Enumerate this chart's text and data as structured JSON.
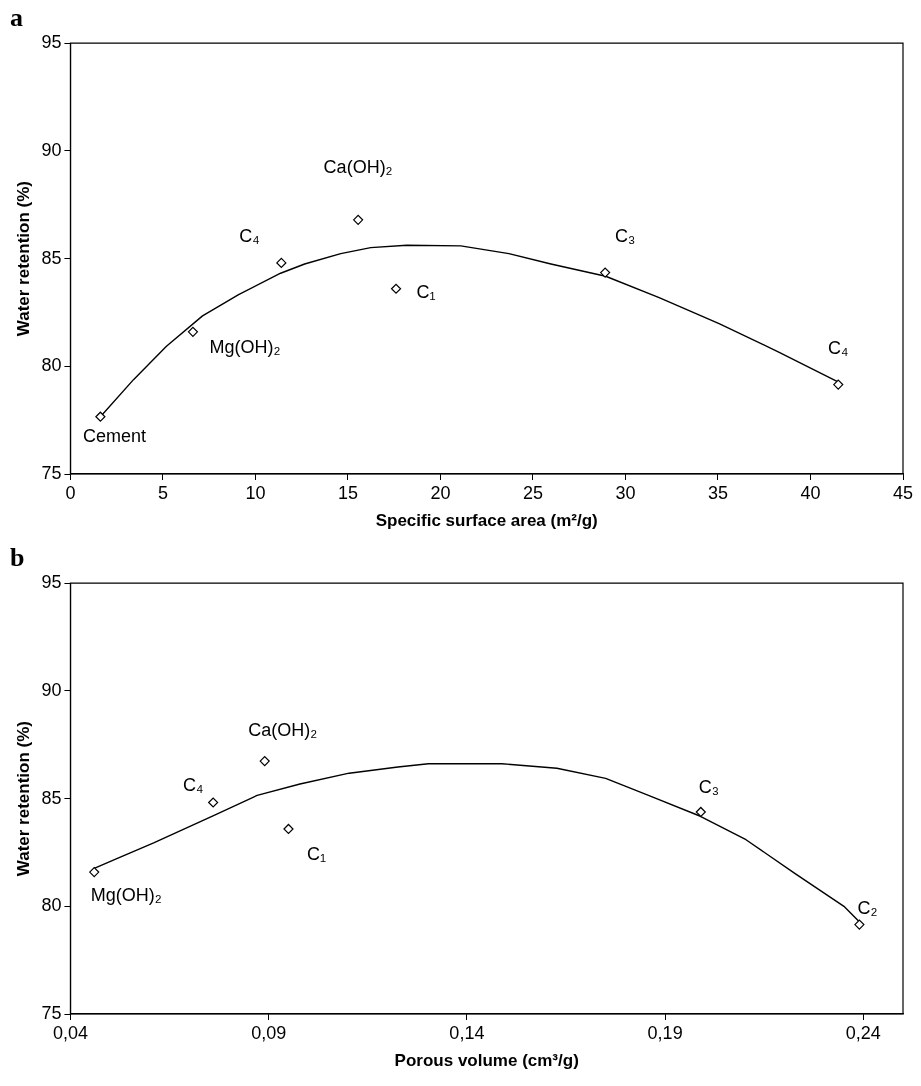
{
  "chart_data": [
    {
      "type": "scatter",
      "title": "a",
      "xlabel": "Specific surface area (m²/g)",
      "ylabel": "Water retention (%)",
      "xlim": [
        0,
        45
      ],
      "xticks": [
        0,
        5,
        10,
        15,
        20,
        25,
        30,
        35,
        40,
        45
      ],
      "ylim": [
        75,
        95
      ],
      "yticks": [
        75,
        80,
        85,
        90,
        95
      ],
      "grid": false,
      "legend": false,
      "marker": "diamond",
      "series": [
        {
          "color": "#000000",
          "x": [
            1.62,
            6.62,
            11.4,
            15.55,
            17.6,
            28.9,
            41.5
          ],
          "values": [
            77.66,
            81.6,
            84.8,
            86.8,
            83.6,
            84.35,
            79.15
          ]
        },
        {
          "type": "line",
          "marker": "none",
          "color": "#000000",
          "x": [
            1.62,
            3.41,
            5.19,
            7.14,
            9.09,
            11.36,
            12.66,
            14.61,
            16.23,
            18.18,
            21.1,
            23.7,
            25.97,
            28.93,
            31.82,
            35.06,
            38.31,
            41.46
          ],
          "values": [
            77.66,
            79.38,
            80.93,
            82.34,
            83.33,
            84.32,
            84.75,
            85.23,
            85.51,
            85.62,
            85.59,
            85.23,
            84.75,
            84.18,
            83.19,
            81.98,
            80.65,
            79.29
          ]
        }
      ],
      "annotations": [
        {
          "text": "Cement",
          "x": 1.62,
          "y": 77.66
        },
        {
          "text": "Mg(OH)₂",
          "x": 6.62,
          "y": 81.6
        },
        {
          "text": "C₄",
          "x": 11.4,
          "y": 84.8
        },
        {
          "text": "Ca(OH)₂",
          "x": 15.55,
          "y": 86.8
        },
        {
          "text": "C₁",
          "x": 17.6,
          "y": 83.6
        },
        {
          "text": "C₃",
          "x": 28.9,
          "y": 84.35
        },
        {
          "text": "C₄",
          "x": 41.5,
          "y": 79.15
        }
      ]
    },
    {
      "type": "scatter",
      "title": "b",
      "xlabel": "Porous volume (cm³/g)",
      "ylabel": "Water retention (%)",
      "xlim": [
        0.04,
        0.25
      ],
      "xticks": [
        {
          "value": 0.04,
          "label": "0,04"
        },
        {
          "value": 0.09,
          "label": "0,09"
        },
        {
          "value": 0.14,
          "label": "0,14"
        },
        {
          "value": 0.19,
          "label": "0,19"
        },
        {
          "value": 0.24,
          "label": "0,24"
        }
      ],
      "ylim": [
        75,
        95
      ],
      "yticks": [
        75,
        80,
        85,
        90,
        95
      ],
      "grid": false,
      "legend": false,
      "marker": "diamond",
      "series": [
        {
          "color": "#000000",
          "x": [
            0.046,
            0.076,
            0.089,
            0.095,
            0.199,
            0.239
          ],
          "values": [
            81.59,
            84.82,
            86.74,
            83.59,
            84.38,
            79.15
          ]
        },
        {
          "type": "line",
          "marker": "none",
          "color": "#000000",
          "x": [
            0.046,
            0.0517,
            0.061,
            0.0761,
            0.0871,
            0.0979,
            0.1103,
            0.1226,
            0.1303,
            0.1488,
            0.1627,
            0.175,
            0.1858,
            0.1989,
            0.2104,
            0.2227,
            0.2351,
            0.2391
          ],
          "values": [
            81.76,
            82.21,
            82.94,
            84.21,
            85.15,
            85.68,
            86.18,
            86.47,
            86.62,
            86.62,
            86.41,
            85.94,
            85.15,
            84.18,
            83.09,
            81.53,
            80,
            79.26
          ]
        }
      ],
      "annotations": [
        {
          "text": "Mg(OH)₂",
          "x": 0.046,
          "y": 81.59
        },
        {
          "text": "C₄",
          "x": 0.076,
          "y": 84.82
        },
        {
          "text": "Ca(OH)₂",
          "x": 0.089,
          "y": 86.74
        },
        {
          "text": "C₁",
          "x": 0.095,
          "y": 83.59
        },
        {
          "text": "C₃",
          "x": 0.199,
          "y": 84.38
        },
        {
          "text": "C₂",
          "x": 0.239,
          "y": 79.15
        }
      ]
    }
  ]
}
